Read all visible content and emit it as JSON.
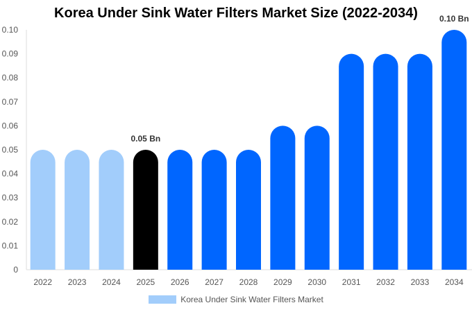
{
  "chart_data": {
    "type": "bar",
    "title": "Korea Under Sink Water Filters Market Size (2022-2034)",
    "categories": [
      "2022",
      "2023",
      "2024",
      "2025",
      "2026",
      "2027",
      "2028",
      "2029",
      "2030",
      "2031",
      "2032",
      "2033",
      "2034"
    ],
    "series": [
      {
        "name": "Korea Under Sink Water Filters Market",
        "values": [
          0.05,
          0.05,
          0.05,
          0.05,
          0.05,
          0.05,
          0.05,
          0.06,
          0.06,
          0.09,
          0.09,
          0.09,
          0.1
        ]
      }
    ],
    "bar_colors": [
      "#a2cdfb",
      "#a2cdfb",
      "#a2cdfb",
      "#000000",
      "#0066ff",
      "#0066ff",
      "#0066ff",
      "#0066ff",
      "#0066ff",
      "#0066ff",
      "#0066ff",
      "#0066ff",
      "#0066ff"
    ],
    "legend_color": "#a2cdfb",
    "data_labels": [
      {
        "category": "2025",
        "text": "0.05 Bn"
      },
      {
        "category": "2034",
        "text": "0.10 Bn"
      }
    ],
    "yticks": [
      "0",
      "0.01",
      "0.02",
      "0.03",
      "0.04",
      "0.05",
      "0.06",
      "0.07",
      "0.08",
      "0.09",
      "0.10"
    ],
    "ylim": [
      0,
      0.1
    ],
    "xlabel": "",
    "ylabel": "",
    "grid": false,
    "legend_position": "bottom"
  }
}
